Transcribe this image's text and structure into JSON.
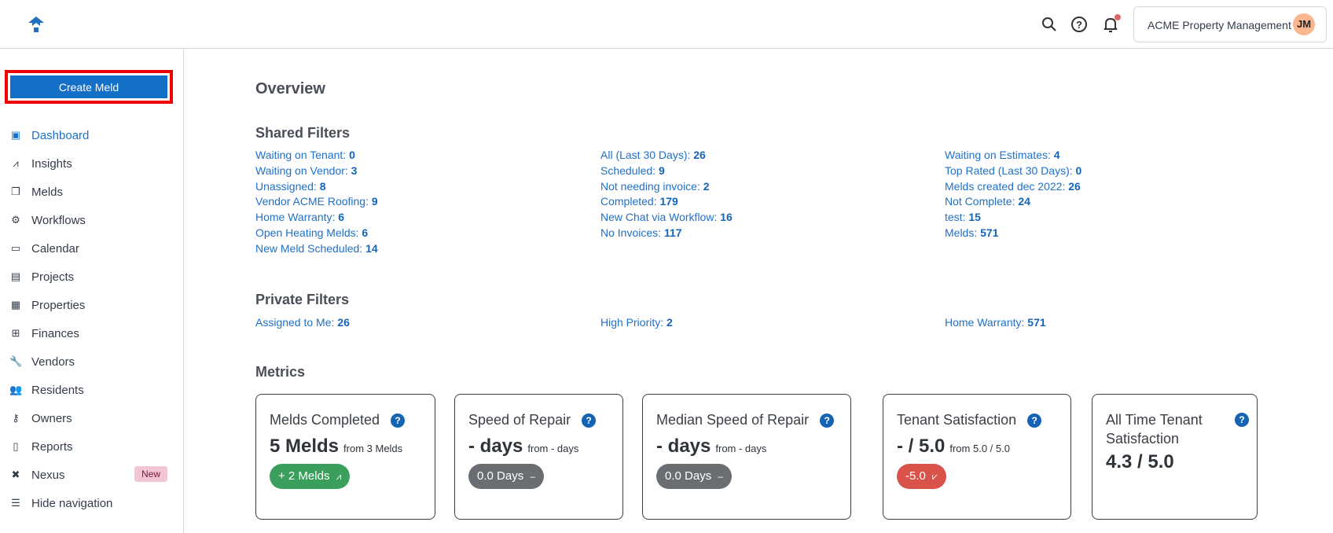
{
  "header": {
    "org_name": "ACME Property Management",
    "avatar_initials": "JM",
    "icons": [
      "search-icon",
      "help-icon",
      "bell-icon"
    ]
  },
  "sidebar": {
    "create_label": "Create Meld",
    "items": [
      {
        "label": "Dashboard",
        "icon": "dashboard-icon",
        "glyph": "▣",
        "active": true
      },
      {
        "label": "Insights",
        "icon": "insights-icon",
        "glyph": "⩘"
      },
      {
        "label": "Melds",
        "icon": "melds-icon",
        "glyph": "❐"
      },
      {
        "label": "Workflows",
        "icon": "workflows-icon",
        "glyph": "⚙"
      },
      {
        "label": "Calendar",
        "icon": "calendar-icon",
        "glyph": "▭"
      },
      {
        "label": "Projects",
        "icon": "projects-icon",
        "glyph": "▤"
      },
      {
        "label": "Properties",
        "icon": "properties-icon",
        "glyph": "▦"
      },
      {
        "label": "Finances",
        "icon": "finances-icon",
        "glyph": "⊞"
      },
      {
        "label": "Vendors",
        "icon": "wrench-icon",
        "glyph": "🔧"
      },
      {
        "label": "Residents",
        "icon": "residents-icon",
        "glyph": "👥"
      },
      {
        "label": "Owners",
        "icon": "key-icon",
        "glyph": "⚷"
      },
      {
        "label": "Reports",
        "icon": "reports-icon",
        "glyph": "▯"
      },
      {
        "label": "Nexus",
        "icon": "nexus-icon",
        "glyph": "✖",
        "badge": "New"
      },
      {
        "label": "Hide navigation",
        "icon": "hide-navigation-icon",
        "glyph": "☰"
      }
    ]
  },
  "main": {
    "title": "Overview",
    "shared_title": "Shared Filters",
    "shared": [
      [
        {
          "label": "Waiting on Tenant",
          "count": "0"
        },
        {
          "label": "Waiting on Vendor",
          "count": "3"
        },
        {
          "label": "Unassigned",
          "count": "8"
        },
        {
          "label": "Vendor ACME Roofing",
          "count": "9"
        },
        {
          "label": "Home Warranty",
          "count": "6"
        },
        {
          "label": "Open Heating Melds",
          "count": "6"
        },
        {
          "label": "New Meld Scheduled",
          "count": "14"
        }
      ],
      [
        {
          "label": "All (Last 30 Days)",
          "count": "26"
        },
        {
          "label": "Scheduled",
          "count": "9"
        },
        {
          "label": "Not needing invoice",
          "count": "2"
        },
        {
          "label": "Completed",
          "count": "179"
        },
        {
          "label": "New Chat via Workflow",
          "count": "16"
        },
        {
          "label": "No Invoices",
          "count": "117"
        }
      ],
      [
        {
          "label": "Waiting on Estimates",
          "count": "4"
        },
        {
          "label": "Top Rated (Last 30 Days)",
          "count": "0"
        },
        {
          "label": "Melds created dec 2022",
          "count": "26"
        },
        {
          "label": "Not Complete",
          "count": "24"
        },
        {
          "label": "test",
          "count": "15"
        },
        {
          "label": "Melds",
          "count": "571"
        }
      ]
    ],
    "private_title": "Private Filters",
    "private": [
      [
        {
          "label": "Assigned to Me",
          "count": "26"
        }
      ],
      [
        {
          "label": "High Priority",
          "count": "2"
        }
      ],
      [
        {
          "label": "Home Warranty",
          "count": "571"
        }
      ]
    ],
    "metrics_title": "Metrics",
    "metrics": [
      {
        "title": "Melds Completed",
        "value": "5 Melds",
        "from": "from 3 Melds",
        "pill": "+ 2 Melds",
        "pill_icon": "trend-up-icon",
        "pill_glyph": "⩘",
        "pill_color": "#3a9f5c"
      },
      {
        "title": "Speed of Repair",
        "value": "- days",
        "from": "from - days",
        "pill": "0.0 Days",
        "pill_icon": "dash-icon",
        "pill_glyph": "–",
        "pill_color": "#6a6e73"
      },
      {
        "title": "Median Speed of Repair",
        "value": "- days",
        "from": "from - days",
        "pill": "0.0 Days",
        "pill_icon": "dash-icon",
        "pill_glyph": "–",
        "pill_color": "#6a6e73"
      },
      {
        "title": "Tenant Satisfaction",
        "value": "- / 5.0",
        "from": "from 5.0 / 5.0",
        "pill": "-5.0",
        "pill_icon": "trend-down-icon",
        "pill_glyph": "⩗",
        "pill_color": "#d9534a"
      },
      {
        "title": "All Time Tenant Satisfaction",
        "value": "4.3 / 5.0",
        "from": "",
        "pill": ""
      }
    ]
  }
}
